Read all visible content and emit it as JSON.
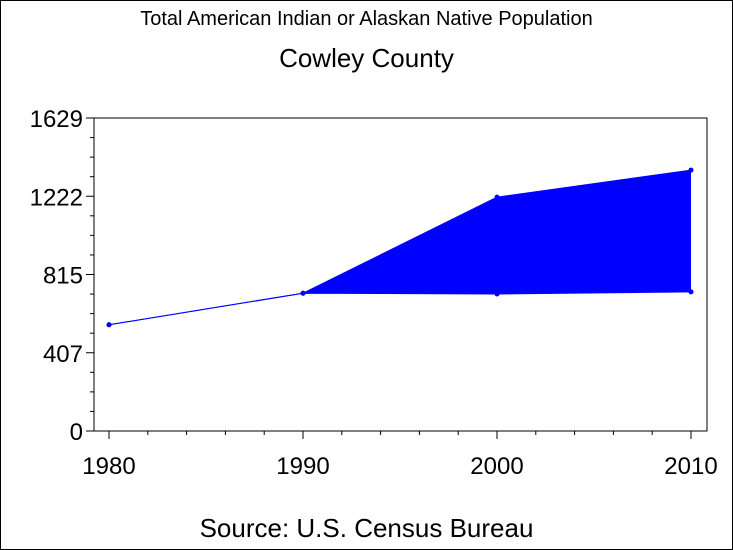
{
  "chart_data": {
    "type": "area",
    "title": "Total American Indian or Alaskan Native Population",
    "subtitle": "Cowley County",
    "source": "Source: U.S. Census Bureau",
    "x": [
      1980,
      1990,
      2000,
      2010
    ],
    "x_tick_labels": [
      "1980",
      "1990",
      "2000",
      "2010"
    ],
    "y_tick_labels": [
      "0",
      "407",
      "815",
      "1222",
      "1629"
    ],
    "ylim": [
      0,
      1629
    ],
    "series": [
      {
        "values": [
          553,
          717,
          1217,
          1358
        ]
      },
      {
        "values": [
          553,
          717,
          713,
          724
        ]
      }
    ],
    "band_between_series": [
      1,
      2
    ],
    "colors": {
      "line": "#0000ff",
      "fill": "#0000ff",
      "axis": "#000000"
    },
    "grid": false
  }
}
